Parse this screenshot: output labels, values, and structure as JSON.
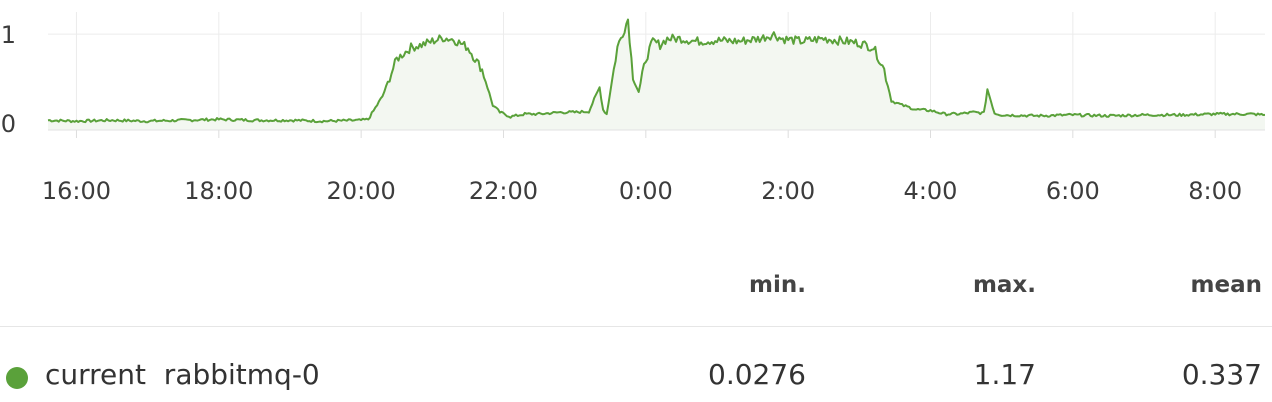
{
  "chart_data": {
    "type": "area",
    "x_unit": "hours",
    "x_ticks": [
      {
        "value": 16,
        "label": "16:00"
      },
      {
        "value": 18,
        "label": "18:00"
      },
      {
        "value": 20,
        "label": "20:00"
      },
      {
        "value": 22,
        "label": "22:00"
      },
      {
        "value": 24,
        "label": "0:00"
      },
      {
        "value": 26,
        "label": "2:00"
      },
      {
        "value": 28,
        "label": "4:00"
      },
      {
        "value": 30,
        "label": "6:00"
      },
      {
        "value": 32,
        "label": "8:00"
      }
    ],
    "y_ticks": [
      {
        "value": 0,
        "label": "0"
      },
      {
        "value": 1,
        "label": "1"
      }
    ],
    "xlim": [
      15.6,
      32.7
    ],
    "ylim": [
      -0.08,
      1.25
    ],
    "grid": true,
    "series": [
      {
        "name": "current  rabbitmq-0",
        "color": "#5aa13a",
        "fill": "#f3f7f1",
        "x": [
          15.6,
          16.0,
          16.5,
          17.0,
          17.5,
          18.0,
          18.5,
          19.0,
          19.5,
          20.0,
          20.1,
          20.3,
          20.5,
          20.7,
          20.85,
          21.0,
          21.15,
          21.3,
          21.5,
          21.7,
          21.85,
          21.95,
          22.1,
          22.3,
          22.5,
          22.8,
          23.0,
          23.2,
          23.35,
          23.4,
          23.45,
          23.6,
          23.75,
          23.82,
          23.9,
          24.0,
          24.1,
          24.2,
          24.3,
          24.5,
          24.7,
          25.0,
          25.3,
          25.6,
          25.8,
          25.9,
          26.2,
          26.5,
          26.8,
          27.0,
          27.2,
          27.35,
          27.45,
          27.6,
          27.8,
          28.0,
          28.2,
          28.4,
          28.6,
          28.75,
          28.8,
          28.9,
          29.0,
          29.5,
          30.0,
          30.5,
          31.0,
          31.5,
          32.0,
          32.5,
          32.7
        ],
        "y": [
          0.03,
          0.02,
          0.03,
          0.02,
          0.03,
          0.04,
          0.03,
          0.03,
          0.02,
          0.03,
          0.04,
          0.3,
          0.72,
          0.85,
          0.88,
          0.92,
          0.96,
          0.94,
          0.85,
          0.6,
          0.2,
          0.12,
          0.07,
          0.1,
          0.1,
          0.12,
          0.12,
          0.13,
          0.4,
          0.15,
          0.1,
          0.85,
          1.17,
          0.5,
          0.35,
          0.72,
          0.92,
          0.88,
          0.95,
          0.95,
          0.92,
          0.93,
          0.92,
          0.95,
          1.0,
          0.95,
          0.92,
          0.95,
          0.92,
          0.9,
          0.85,
          0.6,
          0.25,
          0.2,
          0.15,
          0.14,
          0.1,
          0.1,
          0.12,
          0.11,
          0.38,
          0.11,
          0.09,
          0.08,
          0.09,
          0.08,
          0.09,
          0.09,
          0.1,
          0.1,
          0.09
        ]
      }
    ],
    "legend": {
      "headers": {
        "min": "min.",
        "max": "max.",
        "mean": "mean"
      },
      "rows": [
        {
          "name": "current  rabbitmq-0",
          "color": "#5aa13a",
          "min": "0.0276",
          "max": "1.17",
          "mean": "0.337"
        }
      ]
    }
  }
}
